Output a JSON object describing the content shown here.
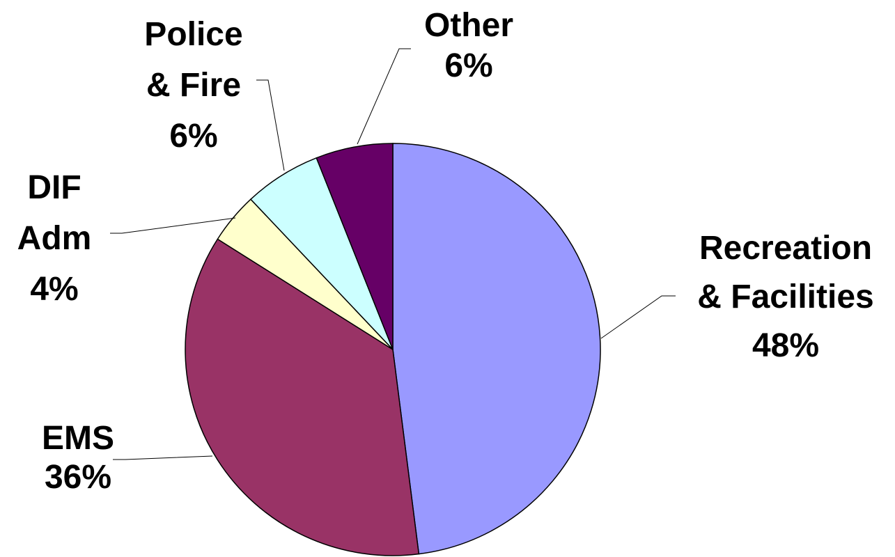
{
  "chart_data": {
    "type": "pie",
    "title": "",
    "legend": "none",
    "slices": [
      {
        "label_lines": [
          "Recreation",
          "& Facilities",
          "48%"
        ],
        "name": "Recreation & Facilities",
        "value": 48,
        "color": "#9999FF"
      },
      {
        "label_lines": [
          "EMS",
          "36%"
        ],
        "name": "EMS",
        "value": 36,
        "color": "#993366"
      },
      {
        "label_lines": [
          "DIF",
          "Adm",
          "4%"
        ],
        "name": "DIF Adm",
        "value": 4,
        "color": "#FFFFCC"
      },
      {
        "label_lines": [
          "Police",
          "& Fire",
          "6%"
        ],
        "name": "Police & Fire",
        "value": 6,
        "color": "#CCFFFF"
      },
      {
        "label_lines": [
          "Other",
          "6%"
        ],
        "name": "Other",
        "value": 6,
        "color": "#660066"
      }
    ]
  }
}
